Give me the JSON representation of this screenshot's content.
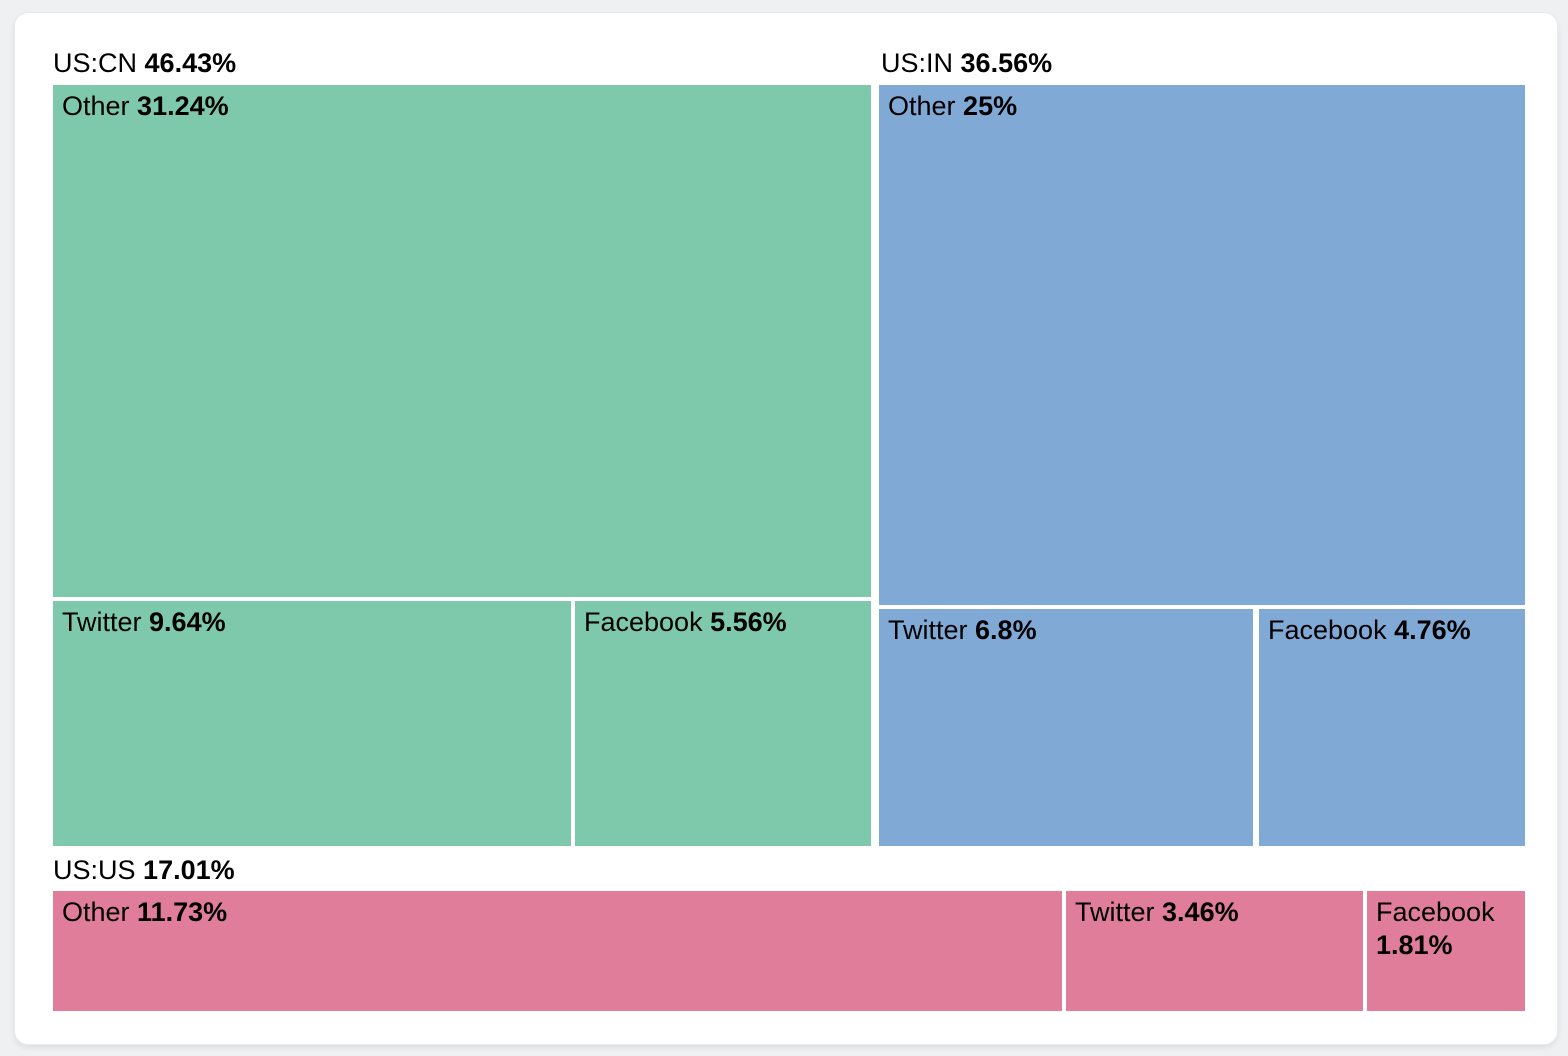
{
  "chart_data": {
    "type": "treemap",
    "title": "",
    "legend": "none",
    "unit": "%",
    "group_colors": {
      "US:CN": "#7ec9ab",
      "US:IN": "#81a9d6",
      "US:US": "#e07d9b"
    },
    "groups": [
      {
        "name": "US:CN",
        "value": 46.43,
        "value_label": "46.43%",
        "color": "#7ec9ab",
        "children": [
          {
            "name": "Other",
            "value": 31.24,
            "value_label": "31.24%"
          },
          {
            "name": "Twitter",
            "value": 9.64,
            "value_label": "9.64%"
          },
          {
            "name": "Facebook",
            "value": 5.56,
            "value_label": "5.56%"
          }
        ]
      },
      {
        "name": "US:IN",
        "value": 36.56,
        "value_label": "36.56%",
        "color": "#81a9d6",
        "children": [
          {
            "name": "Other",
            "value": 25,
            "value_label": "25%"
          },
          {
            "name": "Twitter",
            "value": 6.8,
            "value_label": "6.8%"
          },
          {
            "name": "Facebook",
            "value": 4.76,
            "value_label": "4.76%"
          }
        ]
      },
      {
        "name": "US:US",
        "value": 17.01,
        "value_label": "17.01%",
        "color": "#e07d9b",
        "children": [
          {
            "name": "Other",
            "value": 11.73,
            "value_label": "11.73%"
          },
          {
            "name": "Twitter",
            "value": 3.46,
            "value_label": "3.46%"
          },
          {
            "name": "Facebook",
            "value": 1.81,
            "value_label": "1.81%"
          }
        ]
      }
    ]
  }
}
